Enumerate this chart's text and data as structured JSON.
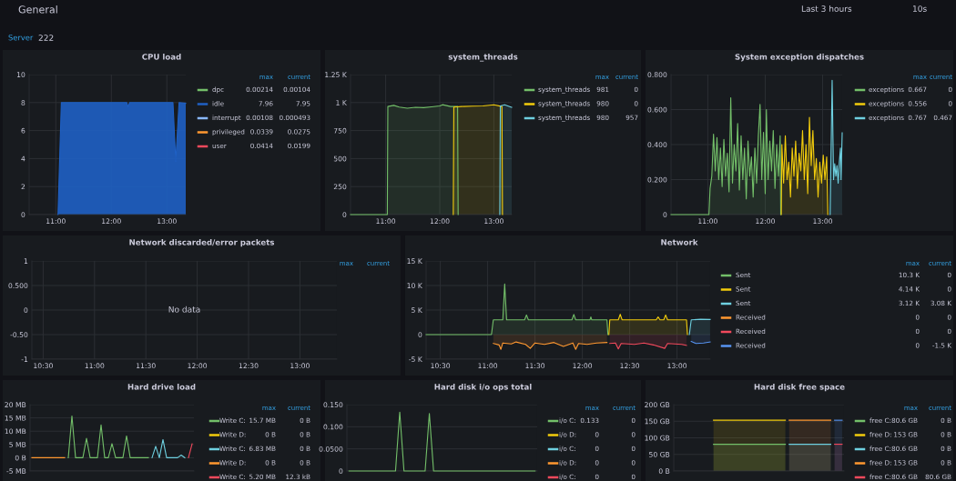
{
  "chart_data": [
    {
      "type": "other",
      "annotations": [
        "General",
        "Last 3 hours",
        "10s",
        "Server",
        "222"
      ]
    },
    {
      "type": "area",
      "title": "CPU load",
      "stacked": true,
      "legend": "right",
      "grid": true,
      "x": [
        11.04,
        11.1,
        12.28,
        12.3,
        12.33,
        13.11,
        13.16,
        13.22,
        13.34
      ],
      "xlim": [
        10.52,
        13.34
      ],
      "xticks": [
        {
          "value": 11,
          "label": "11:00"
        },
        {
          "value": 12,
          "label": "12:00"
        },
        {
          "value": 13,
          "label": "13:00"
        }
      ],
      "ylim": [
        0,
        10
      ],
      "yticks": [
        0,
        2,
        4,
        6,
        8,
        10
      ],
      "series": [
        {
          "name": "dpc",
          "color": "#73bf69",
          "values": [
            null,
            null,
            null,
            null,
            null,
            null,
            null,
            null,
            null
          ]
        },
        {
          "name": "idle",
          "color": "#1f60c4",
          "values": [
            0,
            8,
            8,
            7.7,
            8,
            8,
            3.8,
            8,
            7.95
          ]
        },
        {
          "name": "interrupt",
          "color": "#8ab8ff",
          "values": [
            null,
            null,
            null,
            null,
            null,
            null,
            null,
            null,
            null
          ]
        },
        {
          "name": "privileged",
          "color": "#ff9830",
          "values": [
            null,
            null,
            null,
            null,
            null,
            null,
            null,
            null,
            null
          ]
        },
        {
          "name": "user",
          "color": "#f2495c",
          "values": [
            null,
            null,
            null,
            null,
            null,
            null,
            null,
            null,
            null
          ]
        }
      ],
      "annotations": [
        "max",
        "current",
        "0.00214",
        "0.00104",
        "7.96",
        "7.95",
        "0.00108",
        "0.000493",
        "0.0339",
        "0.0275",
        "0.0414",
        "0.0199"
      ]
    },
    {
      "type": "area",
      "title": "system_threads",
      "legend": "right",
      "grid": true,
      "xlim": [
        10.35,
        13.33
      ],
      "xticks": [
        {
          "value": 11,
          "label": "11:00"
        },
        {
          "value": 12,
          "label": "12:00"
        },
        {
          "value": 13,
          "label": "13:00"
        }
      ],
      "ylim": [
        0,
        1250
      ],
      "yticks": [
        0,
        250,
        500,
        750,
        {
          "value": 1000,
          "label": "1 K"
        },
        {
          "value": 1250,
          "label": "1.25 K"
        }
      ],
      "series": [
        {
          "name": "system_threads",
          "color": "#73bf69",
          "x": [
            10.35,
            11.03,
            11.04,
            11.15,
            11.25,
            11.4,
            11.55,
            11.7,
            11.85,
            12.0,
            12.05,
            12.2,
            12.33,
            12.34
          ],
          "values": [
            0,
            0,
            965,
            975,
            960,
            950,
            958,
            955,
            962,
            970,
            981,
            965,
            965,
            0
          ]
        },
        {
          "name": "system_threads",
          "color": "#f2cc0c",
          "x": [
            12.25,
            12.26,
            12.4,
            12.6,
            12.8,
            13.0,
            13.15,
            13.16
          ],
          "values": [
            0,
            960,
            965,
            968,
            970,
            980,
            965,
            0
          ]
        },
        {
          "name": "system_threads",
          "color": "#6ed0e0",
          "x": [
            13.11,
            13.12,
            13.2,
            13.33
          ],
          "values": [
            0,
            970,
            980,
            957
          ]
        }
      ],
      "annotations": [
        "max",
        "current",
        "981",
        "0",
        "980",
        "0",
        "980",
        "957"
      ]
    },
    {
      "type": "area",
      "title": "System exception dispatches",
      "legend": "right",
      "grid": true,
      "xlim": [
        10.36,
        13.34
      ],
      "xticks": [
        {
          "value": 11,
          "label": "11:00"
        },
        {
          "value": 12,
          "label": "12:00"
        },
        {
          "value": 13,
          "label": "13:00"
        }
      ],
      "ylim": [
        0,
        0.8
      ],
      "yticks": [
        0,
        {
          "value": 0.2,
          "label": "0.200"
        },
        {
          "value": 0.4,
          "label": "0.400"
        },
        {
          "value": 0.6,
          "label": "0.600"
        },
        {
          "value": 0.8,
          "label": "0.800"
        }
      ],
      "series": [
        {
          "name": "exceptions",
          "color": "#73bf69",
          "x": [
            10.36,
            11.02,
            11.04,
            11.07,
            11.1,
            11.13,
            11.16,
            11.19,
            11.22,
            11.25,
            11.28,
            11.31,
            11.34,
            11.37,
            11.4,
            11.43,
            11.46,
            11.49,
            11.52,
            11.55,
            11.58,
            11.61,
            11.64,
            11.67,
            11.7,
            11.73,
            11.76,
            11.79,
            11.82,
            11.85,
            11.88,
            11.91,
            11.94,
            11.97,
            12.0,
            12.02,
            12.05,
            12.08,
            12.11,
            12.14,
            12.17,
            12.2,
            12.23,
            12.26,
            12.27
          ],
          "values": [
            0,
            0,
            0.15,
            0.22,
            0.46,
            0.25,
            0.44,
            0.2,
            0.38,
            0.16,
            0.43,
            0.22,
            0.35,
            0.13,
            0.667,
            0.18,
            0.4,
            0.25,
            0.52,
            0.14,
            0.45,
            0.2,
            0.38,
            0.09,
            0.42,
            0.22,
            0.33,
            0.1,
            0.38,
            0.18,
            0.45,
            0.63,
            0.2,
            0.47,
            0.12,
            0.6,
            0.2,
            0.42,
            0.25,
            0.48,
            0.15,
            0.4,
            0.22,
            0.45,
            0
          ]
        },
        {
          "name": "exceptions",
          "color": "#f2cc0c",
          "x": [
            12.28,
            12.29,
            12.32,
            12.35,
            12.38,
            12.41,
            12.44,
            12.47,
            12.5,
            12.53,
            12.56,
            12.59,
            12.62,
            12.65,
            12.68,
            12.71,
            12.74,
            12.77,
            12.8,
            12.83,
            12.86,
            12.89,
            12.92,
            12.95,
            12.98,
            13.01,
            13.04,
            13.07,
            13.09
          ],
          "values": [
            0,
            0.4,
            0.18,
            0.45,
            0.2,
            0.3,
            0.1,
            0.38,
            0.22,
            0.42,
            0.15,
            0.35,
            0.25,
            0.48,
            0.2,
            0.4,
            0.12,
            0.556,
            0.28,
            0.48,
            0.2,
            0.32,
            0.1,
            0.3,
            0.18,
            0.34,
            0.2,
            0.33,
            0
          ]
        },
        {
          "name": "exceptions",
          "color": "#6ed0e0",
          "x": [
            13.13,
            13.165,
            13.19,
            13.21,
            13.23,
            13.25,
            13.27,
            13.29,
            13.31,
            13.32,
            13.34
          ],
          "values": [
            0,
            0.767,
            0.2,
            0.29,
            0.22,
            0.28,
            0.18,
            0.3,
            0.38,
            0.2,
            0.467
          ]
        }
      ],
      "annotations": [
        "max",
        "current",
        "0.667",
        "0",
        "0.556",
        "0",
        "0.767",
        "0.467"
      ]
    },
    {
      "type": "line",
      "title": "Network discarded/error packets",
      "grid": true,
      "xlim": [
        10.39,
        13.36
      ],
      "xticks": [
        {
          "value": 10.5,
          "label": "10:30"
        },
        {
          "value": 11,
          "label": "11:00"
        },
        {
          "value": 11.5,
          "label": "11:30"
        },
        {
          "value": 12,
          "label": "12:00"
        },
        {
          "value": 12.5,
          "label": "12:30"
        },
        {
          "value": 13,
          "label": "13:00"
        }
      ],
      "ylim": [
        -1,
        1
      ],
      "yticks": [
        -1,
        {
          "value": -0.5,
          "label": "-0.50"
        },
        0,
        {
          "value": 0.5,
          "label": "0.500"
        },
        1
      ],
      "annotations": [
        "max",
        "current",
        "No data"
      ]
    },
    {
      "type": "area",
      "title": "Network",
      "legend": "right",
      "grid": true,
      "xlim": [
        10.35,
        13.35
      ],
      "xticks": [
        {
          "value": 10.5,
          "label": "10:30"
        },
        {
          "value": 11,
          "label": "11:00"
        },
        {
          "value": 11.5,
          "label": "11:30"
        },
        {
          "value": 12,
          "label": "12:00"
        },
        {
          "value": 12.5,
          "label": "12:30"
        },
        {
          "value": 13,
          "label": "13:00"
        }
      ],
      "ylim": [
        -5000,
        15000
      ],
      "yticks": [
        {
          "value": -5000,
          "label": "-5 K"
        },
        0,
        {
          "value": 5000,
          "label": "5 K"
        },
        {
          "value": 10000,
          "label": "10 K"
        },
        {
          "value": 15000,
          "label": "15 K"
        }
      ],
      "series": [
        {
          "name": "Sent",
          "color": "#73bf69",
          "x": [
            10.35,
            11.04,
            11.06,
            11.16,
            11.18,
            11.2,
            11.39,
            11.41,
            11.43,
            11.89,
            11.91,
            11.93,
            12.08,
            12.09,
            12.1,
            12.26,
            12.27
          ],
          "values": [
            0,
            0,
            3000,
            3000,
            10300,
            3000,
            3000,
            4000,
            3000,
            3000,
            4100,
            3000,
            3000,
            3600,
            3000,
            3000,
            0
          ]
        },
        {
          "name": "Sent",
          "color": "#f2cc0c",
          "x": [
            12.28,
            12.29,
            12.38,
            12.4,
            12.42,
            12.78,
            12.8,
            12.82,
            12.86,
            12.88,
            12.9,
            13.1,
            13.11
          ],
          "values": [
            0,
            3000,
            3000,
            4140,
            3000,
            3000,
            3600,
            3000,
            3000,
            4000,
            3000,
            3000,
            0
          ]
        },
        {
          "name": "Sent",
          "color": "#6ed0e0",
          "x": [
            13.13,
            13.15,
            13.25,
            13.35
          ],
          "values": [
            0,
            3000,
            3120,
            3080
          ]
        },
        {
          "name": "Received",
          "color": "#ff9830",
          "x": [
            11.06,
            11.12,
            11.14,
            11.16,
            11.25,
            11.3,
            11.4,
            11.45,
            11.5,
            11.6,
            11.7,
            11.8,
            11.9,
            11.93,
            11.96,
            12.05,
            12.15,
            12.26
          ],
          "values": [
            -1800,
            -2100,
            -3000,
            -1700,
            -1900,
            -1500,
            -2000,
            -2800,
            -1700,
            -2000,
            -1600,
            -2400,
            -1700,
            -3000,
            -1800,
            -2000,
            -1700,
            -1600
          ]
        },
        {
          "name": "Received",
          "color": "#f2495c",
          "x": [
            12.29,
            12.35,
            12.38,
            12.41,
            12.55,
            12.65,
            12.75,
            12.87,
            12.9,
            13.05,
            13.1
          ],
          "values": [
            -1800,
            -1700,
            -2900,
            -1800,
            -2000,
            -1700,
            -2100,
            -2800,
            -1800,
            -2000,
            -2200
          ]
        },
        {
          "name": "Received",
          "color": "#5794f2",
          "x": [
            13.15,
            13.2,
            13.28,
            13.35
          ],
          "values": [
            -1400,
            -1800,
            -1700,
            -1500
          ]
        }
      ],
      "annotations": [
        "max",
        "current",
        "10.3 K",
        "0",
        "4.14 K",
        "0",
        "3.12 K",
        "3.08 K",
        "0",
        "0",
        "0",
        "0",
        "0",
        "-1.5 K"
      ]
    },
    {
      "type": "line",
      "title": "Hard drive load",
      "legend": "right",
      "grid": "y",
      "tick_labels": "y",
      "categories": [
        null,
        null,
        null,
        null,
        null,
        null,
        null,
        null,
        null,
        null,
        null,
        null,
        null,
        null,
        null,
        null,
        null,
        null,
        null,
        null,
        null,
        null,
        null,
        null,
        null,
        null,
        null,
        null,
        null,
        null,
        null,
        null,
        null,
        null,
        null,
        null,
        null,
        null,
        null,
        null,
        null,
        null,
        null,
        null,
        null
      ],
      "ylim": [
        -5,
        20
      ],
      "yticks": [
        {
          "value": -5,
          "label": "-5 MB"
        },
        {
          "value": 0,
          "label": "0 B"
        },
        {
          "value": 5,
          "label": "5 MB"
        },
        {
          "value": 10,
          "label": "10 MB"
        },
        {
          "value": 15,
          "label": "15 MB"
        },
        {
          "value": 20,
          "label": "20 MB"
        }
      ],
      "series": [
        {
          "name": "Write C:",
          "color": "#73bf69",
          "values": [
            null,
            null,
            null,
            null,
            null,
            null,
            null,
            null,
            null,
            null,
            0,
            15.7,
            0,
            0,
            0,
            7.3,
            0,
            0,
            0,
            12.4,
            0,
            0,
            5.3,
            0,
            0,
            0,
            8.2,
            0,
            0,
            0,
            0,
            0,
            0,
            null,
            null,
            null,
            null,
            null,
            null,
            null,
            null,
            null,
            null,
            null,
            null
          ]
        },
        {
          "name": "Write D:",
          "color": "#f2cc0c",
          "values": [
            null,
            null,
            null,
            null,
            null,
            null,
            null,
            null,
            null,
            null,
            null,
            null,
            null,
            null,
            null,
            null,
            null,
            null,
            null,
            null,
            null,
            null,
            null,
            null,
            null,
            null,
            null,
            null,
            null,
            null,
            null,
            null,
            null,
            null,
            null,
            null,
            null,
            null,
            null,
            null,
            null,
            null,
            null,
            null,
            null
          ]
        },
        {
          "name": "Write C:",
          "color": "#6ed0e0",
          "values": [
            null,
            null,
            null,
            null,
            null,
            null,
            null,
            null,
            null,
            null,
            null,
            null,
            null,
            null,
            null,
            null,
            null,
            null,
            null,
            null,
            null,
            null,
            null,
            null,
            null,
            null,
            null,
            null,
            null,
            null,
            null,
            null,
            null,
            0,
            4.3,
            0,
            6.83,
            0,
            0,
            0,
            0,
            1.0,
            0,
            null,
            null
          ]
        },
        {
          "name": "Write D:",
          "color": "#ff9830",
          "values": [
            0,
            0,
            0,
            0,
            0,
            0,
            0,
            0,
            0,
            0,
            null,
            null,
            null,
            null,
            null,
            null,
            null,
            null,
            null,
            null,
            null,
            null,
            null,
            null,
            null,
            null,
            null,
            null,
            null,
            null,
            null,
            null,
            null,
            null,
            null,
            null,
            null,
            null,
            null,
            null,
            null,
            null,
            null,
            null,
            null
          ]
        },
        {
          "name": "Write C:",
          "color": "#f2495c",
          "values": [
            null,
            null,
            null,
            null,
            null,
            null,
            null,
            null,
            null,
            null,
            null,
            null,
            null,
            null,
            null,
            null,
            null,
            null,
            null,
            null,
            null,
            null,
            null,
            null,
            null,
            null,
            null,
            null,
            null,
            null,
            null,
            null,
            null,
            null,
            null,
            null,
            null,
            null,
            null,
            null,
            null,
            null,
            null,
            0,
            5.2
          ]
        }
      ],
      "annotations": [
        "max",
        "current",
        "15.7 MB",
        "0 B",
        "0 B",
        "0 B",
        "6.83 MB",
        "0 B",
        "0 B",
        "0 B",
        "5.20 MB",
        "12.3 kB"
      ]
    },
    {
      "type": "line",
      "title": "Hard disk i/o ops total",
      "legend": "right",
      "grid": "y",
      "tick_labels": "y",
      "categories": [
        null,
        null,
        null,
        null,
        null,
        null,
        null,
        null,
        null,
        null,
        null,
        null,
        null,
        null,
        null,
        null,
        null,
        null,
        null,
        null,
        null,
        null,
        null,
        null,
        null,
        null,
        null,
        null,
        null,
        null,
        null,
        null,
        null,
        null,
        null,
        null,
        null,
        null,
        null,
        null,
        null,
        null,
        null,
        null,
        null
      ],
      "ylim": [
        0,
        0.15
      ],
      "yticks": [
        0,
        {
          "value": 0.05,
          "label": "0.0500"
        },
        {
          "value": 0.1,
          "label": "0.100"
        },
        {
          "value": 0.15,
          "label": "0.150"
        }
      ],
      "series": [
        {
          "name": "i/o C:",
          "color": "#73bf69",
          "values": [
            0,
            0,
            0,
            0,
            0,
            0,
            0,
            0,
            0,
            0,
            0,
            0,
            0.133,
            0,
            0,
            0,
            0,
            0,
            0,
            0.13,
            0,
            0,
            0,
            0,
            0,
            0,
            0,
            0,
            0,
            0,
            0,
            0,
            0,
            0,
            0,
            0,
            0,
            0,
            0,
            0,
            0,
            0,
            0,
            0,
            0
          ]
        },
        {
          "name": "i/o D:",
          "color": "#f2cc0c",
          "values": [
            null,
            null,
            null,
            null,
            null,
            null,
            null,
            null,
            null,
            null,
            null,
            null,
            null,
            null,
            null,
            null,
            null,
            null,
            null,
            null,
            null,
            null,
            null,
            null,
            null,
            null,
            null,
            null,
            null,
            null,
            null,
            null,
            null,
            null,
            null,
            null,
            null,
            null,
            null,
            null,
            null,
            null,
            null,
            null,
            null
          ]
        },
        {
          "name": "i/o C:",
          "color": "#6ed0e0",
          "values": [
            null,
            null,
            null,
            null,
            null,
            null,
            null,
            null,
            null,
            null,
            null,
            null,
            null,
            null,
            null,
            null,
            null,
            null,
            null,
            null,
            null,
            null,
            null,
            null,
            null,
            null,
            null,
            null,
            null,
            null,
            null,
            null,
            null,
            null,
            null,
            null,
            null,
            null,
            null,
            null,
            null,
            null,
            null,
            null,
            null
          ]
        },
        {
          "name": "i/o D:",
          "color": "#ff9830",
          "values": [
            null,
            null,
            null,
            null,
            null,
            null,
            null,
            null,
            null,
            null,
            null,
            null,
            null,
            null,
            null,
            null,
            null,
            null,
            null,
            null,
            null,
            null,
            null,
            null,
            null,
            null,
            null,
            null,
            null,
            null,
            null,
            null,
            null,
            null,
            null,
            null,
            null,
            null,
            null,
            null,
            null,
            null,
            null,
            null,
            null
          ]
        },
        {
          "name": "i/o C:",
          "color": "#f2495c",
          "values": [
            null,
            null,
            null,
            null,
            null,
            null,
            null,
            null,
            null,
            null,
            null,
            null,
            null,
            null,
            null,
            null,
            null,
            null,
            null,
            null,
            null,
            null,
            null,
            null,
            null,
            null,
            null,
            null,
            null,
            null,
            null,
            null,
            null,
            null,
            null,
            null,
            null,
            null,
            null,
            null,
            null,
            null,
            null,
            null,
            null
          ]
        }
      ],
      "annotations": [
        "max",
        "current",
        "0.133",
        "0",
        "0",
        "0",
        "0",
        "0",
        "0",
        "0",
        "0",
        "0"
      ]
    },
    {
      "type": "area",
      "title": "Hard disk free space",
      "legend": "right",
      "grid": "y",
      "tick_labels": "y",
      "categories": [
        null,
        null,
        null,
        null,
        null,
        null,
        null,
        null,
        null,
        null,
        null,
        null,
        null,
        null,
        null,
        null,
        null,
        null,
        null,
        null,
        null,
        null,
        null,
        null,
        null,
        null,
        null,
        null,
        null,
        null,
        null,
        null,
        null,
        null,
        null,
        null,
        null,
        null,
        null,
        null,
        null,
        null,
        null,
        null,
        null
      ],
      "ylim": [
        0,
        200
      ],
      "yticks": [
        {
          "value": 0,
          "label": "0 B"
        },
        {
          "value": 50,
          "label": "50 GB"
        },
        {
          "value": 100,
          "label": "100 GB"
        },
        {
          "value": 150,
          "label": "150 GB"
        },
        {
          "value": 200,
          "label": "200 GB"
        }
      ],
      "series": [
        {
          "name": "free C:",
          "color": "#73bf69",
          "values": [
            null,
            null,
            null,
            null,
            null,
            null,
            null,
            null,
            null,
            null,
            80.6,
            80.6,
            80.6,
            80.6,
            80.6,
            80.6,
            80.6,
            80.6,
            80.6,
            80.6,
            80.6,
            80.6,
            80.6,
            80.6,
            80.6,
            80.6,
            80.6,
            80.6,
            80.6,
            80.6,
            null,
            null,
            null,
            null,
            null,
            null,
            null,
            null,
            null,
            null,
            null,
            null,
            null,
            null,
            null
          ]
        },
        {
          "name": "free D:",
          "color": "#f2cc0c",
          "values": [
            null,
            null,
            null,
            null,
            null,
            null,
            null,
            null,
            null,
            null,
            153,
            153,
            153,
            153,
            153,
            153,
            153,
            153,
            153,
            153,
            153,
            153,
            153,
            153,
            153,
            153,
            153,
            153,
            153,
            153,
            null,
            null,
            null,
            null,
            null,
            null,
            null,
            null,
            null,
            null,
            null,
            null,
            null,
            null,
            null
          ]
        },
        {
          "name": "free C:",
          "color": "#6ed0e0",
          "values": [
            null,
            null,
            null,
            null,
            null,
            null,
            null,
            null,
            null,
            null,
            null,
            null,
            null,
            null,
            null,
            null,
            null,
            null,
            null,
            null,
            null,
            null,
            null,
            null,
            null,
            null,
            null,
            null,
            null,
            null,
            80.6,
            80.6,
            80.6,
            80.6,
            80.6,
            80.6,
            80.6,
            80.6,
            80.6,
            80.6,
            80.6,
            80.6,
            null,
            null,
            null
          ]
        },
        {
          "name": "free D:",
          "color": "#ff9830",
          "values": [
            null,
            null,
            null,
            null,
            null,
            null,
            null,
            null,
            null,
            null,
            null,
            null,
            null,
            null,
            null,
            null,
            null,
            null,
            null,
            null,
            null,
            null,
            null,
            null,
            null,
            null,
            null,
            null,
            null,
            null,
            153,
            153,
            153,
            153,
            153,
            153,
            153,
            153,
            153,
            153,
            153,
            153,
            null,
            null,
            null
          ]
        },
        {
          "name": "free C:",
          "color": "#f2495c",
          "values": [
            null,
            null,
            null,
            null,
            null,
            null,
            null,
            null,
            null,
            null,
            null,
            null,
            null,
            null,
            null,
            null,
            null,
            null,
            null,
            null,
            null,
            null,
            null,
            null,
            null,
            null,
            null,
            null,
            null,
            null,
            null,
            null,
            null,
            null,
            null,
            null,
            null,
            null,
            null,
            null,
            null,
            null,
            80.6,
            80.6,
            80.6
          ]
        },
        {
          "color": "#5794f2",
          "values": [
            null,
            null,
            null,
            null,
            null,
            null,
            null,
            null,
            null,
            null,
            null,
            null,
            null,
            null,
            null,
            null,
            null,
            null,
            null,
            null,
            null,
            null,
            null,
            null,
            null,
            null,
            null,
            null,
            null,
            null,
            null,
            null,
            null,
            null,
            null,
            null,
            null,
            null,
            null,
            null,
            null,
            null,
            153,
            153,
            153
          ]
        }
      ],
      "annotations": [
        "max",
        "current",
        "80.6 GB",
        "0 B",
        "153 GB",
        "0 B",
        "80.6 GB",
        "0 B",
        "153 GB",
        "0 B",
        "80.6 GB",
        "80.6 GB"
      ]
    }
  ]
}
